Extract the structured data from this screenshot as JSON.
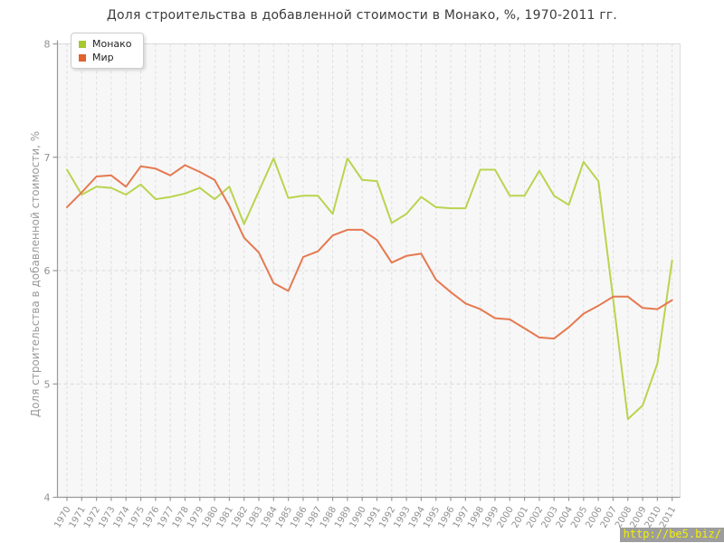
{
  "title": "Доля строительства в добавленной стоимости в Монако, %, 1970-2011 гг.",
  "y_axis_title": "Доля строительства в добавленной стоимости, %",
  "watermark": "http://be5.biz/",
  "colors": {
    "plot_background": "#f7f7f7",
    "grid_line": "#dcdcdc",
    "axis_line": "#999999",
    "tick_label": "#909090",
    "title_text": "#3c3c3c",
    "watermark_background": "#9d9d9d",
    "watermark_text": "#f2f200"
  },
  "legend": [
    {
      "id": "monaco",
      "label": "Монако",
      "color": "#a6c92f"
    },
    {
      "id": "world",
      "label": "Мир",
      "color": "#e2622b"
    }
  ],
  "chart_data": {
    "type": "line",
    "title": "Доля строительства в добавленной стоимости в Монако, %, 1970-2011 гг.",
    "xlabel": "",
    "ylabel": "Доля строительства в добавленной стоимости, %",
    "ylim": [
      4,
      8
    ],
    "yticks": [
      4,
      5,
      6,
      7,
      8
    ],
    "grid": "dashed",
    "legend_position": "top-left",
    "x": [
      1970,
      1971,
      1972,
      1973,
      1974,
      1975,
      1976,
      1977,
      1978,
      1979,
      1980,
      1981,
      1982,
      1983,
      1984,
      1985,
      1986,
      1987,
      1988,
      1989,
      1990,
      1991,
      1992,
      1993,
      1994,
      1995,
      1996,
      1997,
      1998,
      1999,
      2000,
      2001,
      2002,
      2003,
      2004,
      2005,
      2006,
      2007,
      2008,
      2009,
      2010,
      2011
    ],
    "series": [
      {
        "id": "monaco",
        "name": "Монако",
        "color": "#b9d44f",
        "values": [
          6.89,
          6.67,
          6.74,
          6.73,
          6.67,
          6.76,
          6.63,
          6.65,
          6.68,
          6.73,
          6.63,
          6.74,
          6.41,
          6.7,
          6.99,
          6.64,
          6.66,
          6.66,
          6.5,
          6.99,
          6.8,
          6.79,
          6.42,
          6.5,
          6.65,
          6.56,
          6.55,
          6.55,
          6.89,
          6.89,
          6.66,
          6.66,
          6.88,
          6.66,
          6.58,
          6.96,
          6.79,
          5.75,
          4.69,
          4.81,
          5.18,
          6.09
        ]
      },
      {
        "id": "world",
        "name": "Мир",
        "color": "#e57950",
        "values": [
          6.56,
          6.69,
          6.83,
          6.84,
          6.74,
          6.92,
          6.9,
          6.84,
          6.93,
          6.87,
          6.8,
          6.57,
          6.29,
          6.16,
          5.89,
          5.82,
          6.12,
          6.17,
          6.31,
          6.36,
          6.36,
          6.27,
          6.07,
          6.13,
          6.15,
          5.92,
          5.81,
          5.71,
          5.66,
          5.58,
          5.57,
          5.49,
          5.41,
          5.4,
          5.5,
          5.62,
          5.69,
          5.77,
          5.77,
          5.67,
          5.66,
          5.74
        ]
      }
    ]
  }
}
